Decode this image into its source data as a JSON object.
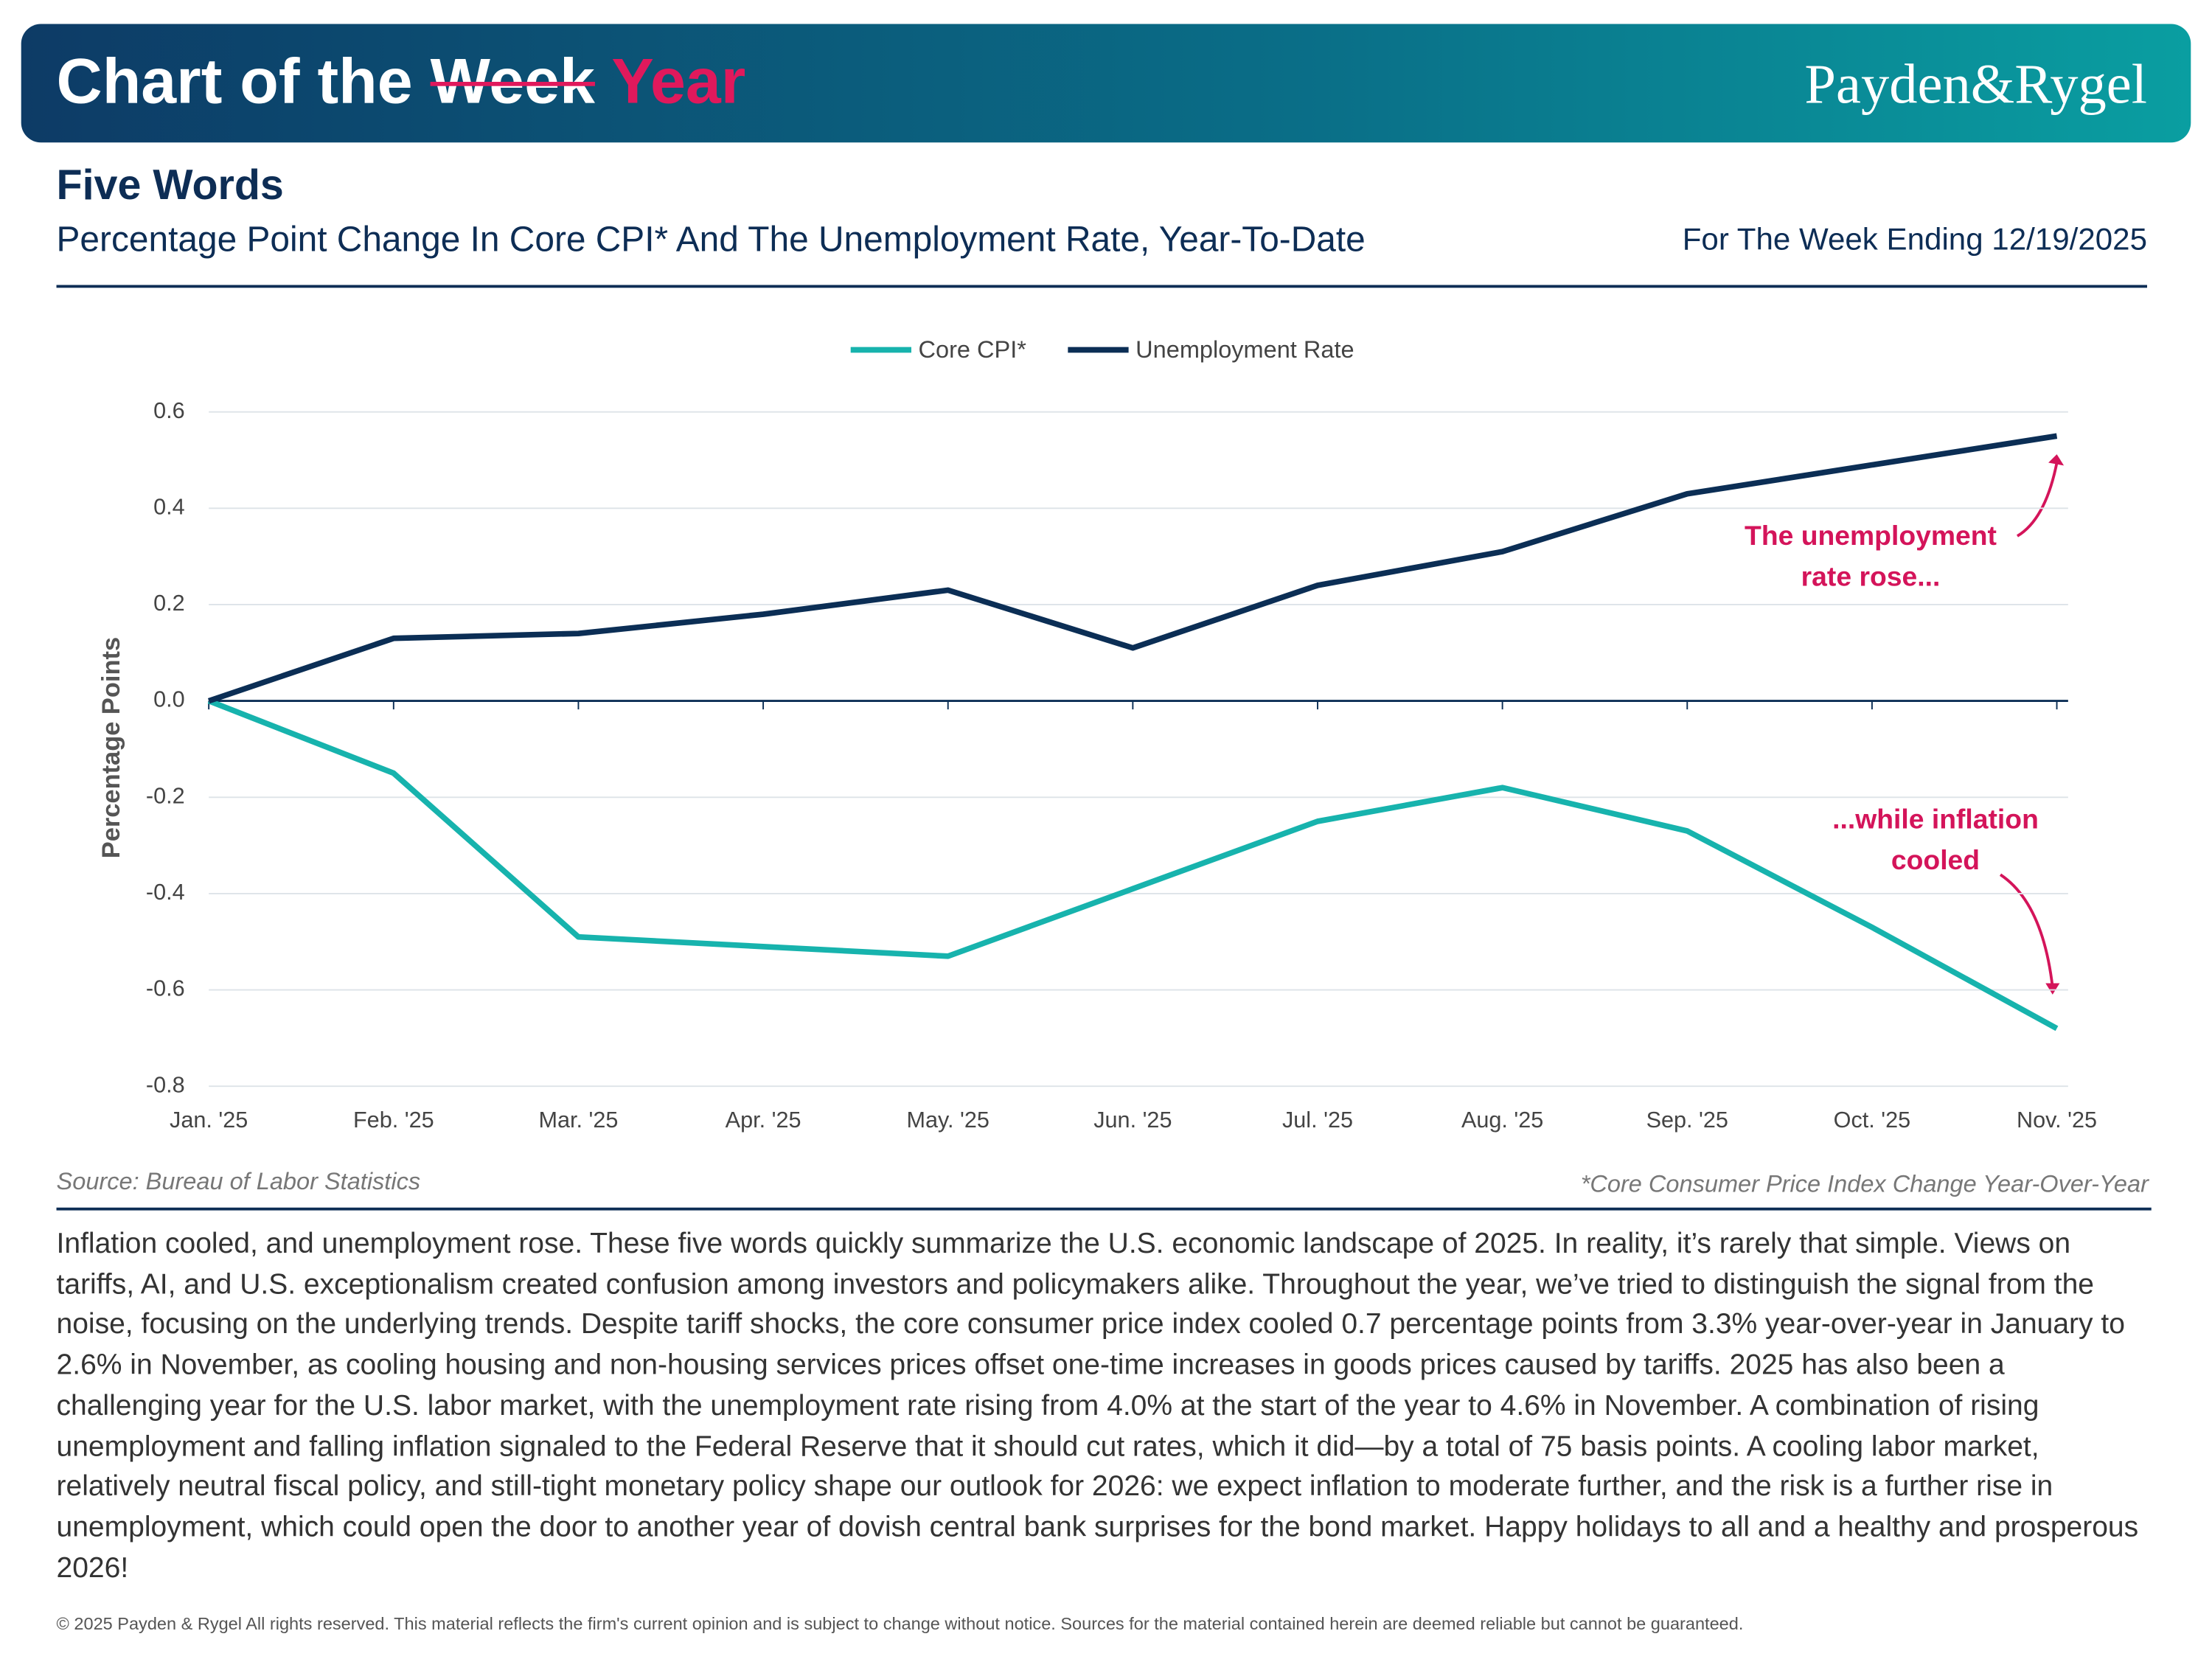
{
  "header": {
    "title_start": "Chart of the",
    "title_struck": "Week",
    "title_end": "Year",
    "logo": "Payden&Rygel"
  },
  "chart_data": {
    "type": "line",
    "title": "Five Words",
    "subtitle": "Percentage Point Change In Core CPI* And The Unemployment Rate, Year-To-Date",
    "date_note": "For The Week Ending 12/19/2025",
    "ylabel": "Percentage Points",
    "categories": [
      "Jan. '25",
      "Feb. '25",
      "Mar. '25",
      "Apr. '25",
      "May. '25",
      "Jun. '25",
      "Jul. '25",
      "Aug. '25",
      "Sep. '25",
      "Oct. '25",
      "Nov. '25"
    ],
    "series": [
      {
        "name": "Core CPI*",
        "color": "#17b3ad",
        "values": [
          0,
          -0.15,
          -0.49,
          -0.51,
          -0.53,
          -0.39,
          -0.25,
          -0.18,
          -0.27,
          -0.47,
          -0.68
        ]
      },
      {
        "name": "Unemployment Rate",
        "color": "#0b2e55",
        "values": [
          0,
          0.13,
          0.14,
          0.18,
          0.23,
          0.11,
          0.24,
          0.31,
          0.43,
          0.49,
          0.55
        ]
      }
    ],
    "ylim": [
      -0.8,
      0.6
    ],
    "yticks": [
      0.6,
      0.4,
      0.2,
      {
        "value": 0,
        "label": "0.0"
      },
      -0.2,
      -0.4,
      -0.6,
      -0.8
    ],
    "grid": true,
    "annotations": [
      {
        "lines": [
          "The unemployment",
          "rate rose..."
        ],
        "color": "#d4145a"
      },
      {
        "lines": [
          "...while inflation",
          "cooled"
        ],
        "color": "#d4145a"
      }
    ],
    "source": "Source: Bureau of Labor Statistics",
    "footnote": "*Core Consumer Price Index  Change Year-Over-Year"
  },
  "body": "Inflation cooled, and unemployment rose. These five words quickly summarize the U.S. economic landscape of 2025. In reality, it’s rarely that simple. Views on tariffs, AI, and U.S. exceptionalism created confusion among investors and policymakers alike. Throughout the year, we’ve tried to distinguish the signal from the noise, focusing on the underlying trends. Despite tariff shocks, the core consumer price index cooled 0.7 percentage points from 3.3% year-over-year in January to 2.6% in November, as cooling housing and non-housing services prices offset one-time increases in goods prices caused by tariffs. 2025 has also been a challenging year for the U.S. labor market, with the unemployment rate rising from 4.0% at the start of the year to 4.6% in November. A combination of rising unemployment and falling inflation signaled to the Federal Reserve that it should cut rates, which it did—by a total of 75 basis points. A cooling labor market, relatively neutral fiscal policy, and still-tight monetary policy shape our outlook for 2026: we expect inflation to moderate further, and the risk is a further rise in unemployment, which could open the door to another year of dovish central bank surprises for the bond market. Happy holidays to all and a healthy and prosperous 2026!",
  "copyright": "© 2025 Payden & Rygel All rights reserved. This material reflects the firm's current opinion and is subject to change without notice. Sources for the material contained herein are deemed reliable but cannot be guaranteed."
}
